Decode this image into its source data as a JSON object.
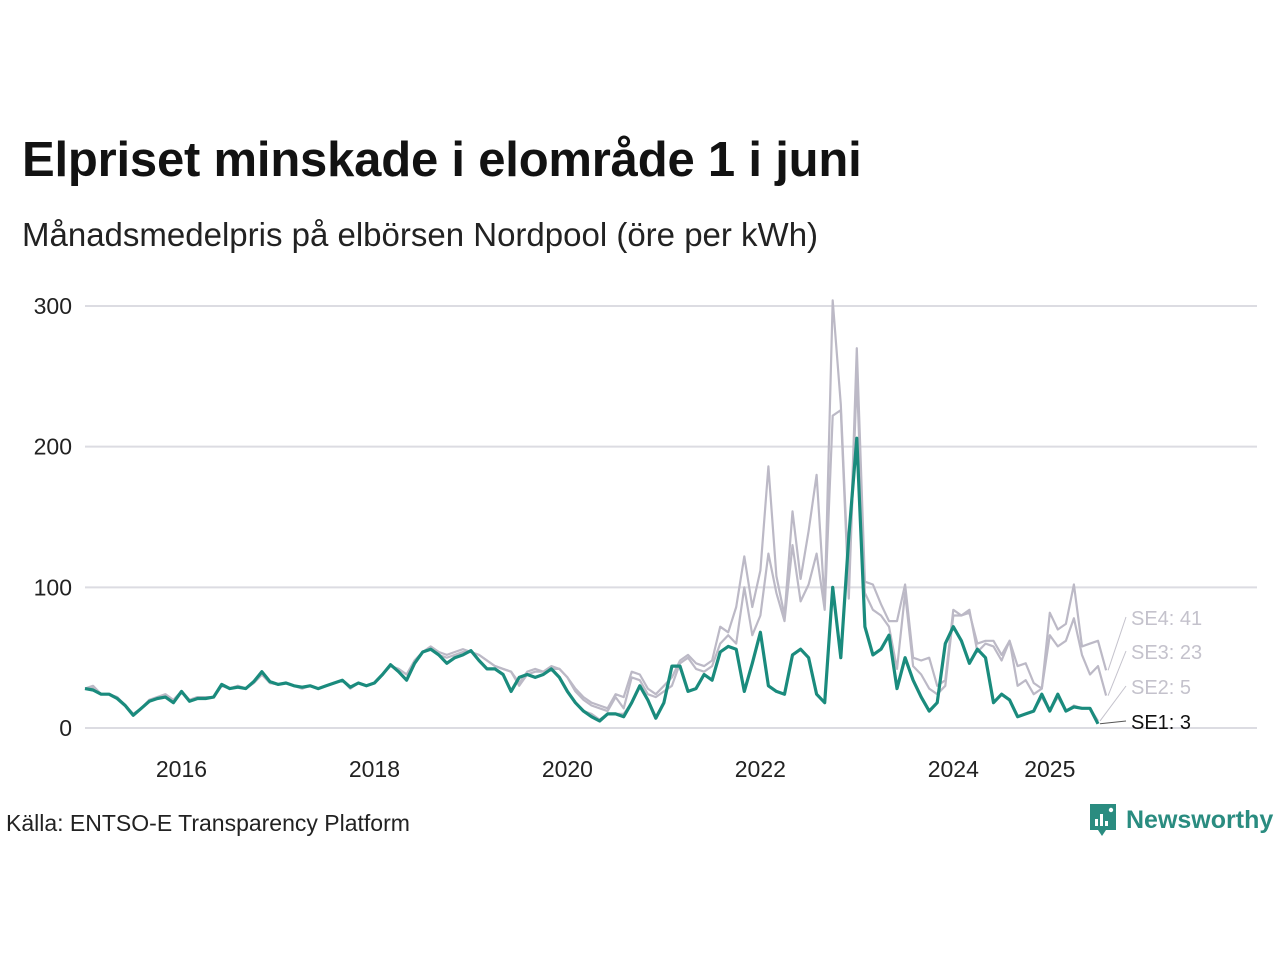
{
  "header": {
    "title": "Elpriset minskade i elområde 1 i juni",
    "subtitle": "Månadsmedelpris på elbörsen Nordpool (öre per kWh)"
  },
  "footer": {
    "source": "Källa: ENTSO-E Transparency Platform",
    "brand": "Newsworthy"
  },
  "colors": {
    "highlight": "#1a8b7d",
    "muted": "#bcb9c6",
    "grid": "#dcdce2",
    "muted_label": "#c4c2cc"
  },
  "chart_data": {
    "type": "line",
    "y_ticks": [
      0,
      100,
      200,
      300
    ],
    "x_ticks": [
      {
        "label": "2016",
        "year": 2016
      },
      {
        "label": "2018",
        "year": 2018
      },
      {
        "label": "2020",
        "year": 2020
      },
      {
        "label": "2022",
        "year": 2022
      },
      {
        "label": "2024",
        "year": 2024
      },
      {
        "label": "2025",
        "year": 2025
      }
    ],
    "x_start": "2015-01",
    "ylim": [
      0,
      310
    ],
    "grid": true,
    "series": [
      {
        "name": "SE4",
        "label": "SE4: 41",
        "highlight": false,
        "values": [
          28,
          30,
          24,
          24,
          22,
          16,
          10,
          14,
          20,
          22,
          24,
          20,
          26,
          20,
          22,
          22,
          22,
          30,
          28,
          30,
          28,
          32,
          38,
          32,
          31,
          32,
          30,
          28,
          30,
          28,
          30,
          32,
          34,
          28,
          32,
          30,
          32,
          38,
          44,
          42,
          38,
          48,
          54,
          58,
          54,
          52,
          54,
          56,
          54,
          52,
          48,
          44,
          42,
          40,
          32,
          40,
          42,
          40,
          44,
          42,
          36,
          28,
          22,
          18,
          16,
          14,
          24,
          22,
          40,
          38,
          28,
          24,
          30,
          36,
          48,
          52,
          46,
          44,
          48,
          72,
          68,
          86,
          122,
          86,
          112,
          186,
          108,
          80,
          154,
          106,
          140,
          180,
          88,
          304,
          230,
          100,
          270,
          104,
          102,
          88,
          76,
          76,
          102,
          50,
          48,
          50,
          30,
          34,
          84,
          80,
          82,
          60,
          62,
          62,
          52,
          62,
          44,
          46,
          32,
          28,
          82,
          70,
          74,
          102,
          58,
          60,
          62,
          41
        ]
      },
      {
        "name": "SE3",
        "label": "SE3: 23",
        "highlight": false,
        "values": [
          28,
          28,
          24,
          24,
          22,
          16,
          10,
          14,
          20,
          22,
          23,
          20,
          26,
          20,
          22,
          22,
          22,
          30,
          28,
          30,
          28,
          32,
          38,
          32,
          31,
          32,
          30,
          28,
          30,
          28,
          30,
          32,
          34,
          28,
          32,
          30,
          32,
          38,
          44,
          42,
          38,
          48,
          54,
          56,
          52,
          50,
          52,
          54,
          54,
          52,
          48,
          44,
          42,
          40,
          30,
          38,
          40,
          40,
          42,
          42,
          36,
          26,
          20,
          16,
          14,
          12,
          22,
          14,
          36,
          34,
          24,
          22,
          26,
          30,
          46,
          50,
          42,
          40,
          44,
          60,
          66,
          60,
          100,
          66,
          80,
          124,
          96,
          76,
          130,
          90,
          102,
          124,
          84,
          222,
          226,
          92,
          250,
          96,
          84,
          80,
          72,
          42,
          96,
          44,
          38,
          28,
          24,
          30,
          80,
          80,
          84,
          54,
          60,
          58,
          48,
          62,
          30,
          34,
          24,
          28,
          66,
          58,
          62,
          78,
          52,
          38,
          44,
          23
        ]
      },
      {
        "name": "SE2",
        "label": "SE2: 5",
        "highlight": false,
        "values": [
          28,
          27,
          24,
          24,
          21,
          16,
          9,
          14,
          19,
          21,
          22,
          18,
          26,
          19,
          21,
          21,
          22,
          31,
          28,
          29,
          28,
          33,
          40,
          33,
          31,
          32,
          30,
          29,
          30,
          28,
          30,
          32,
          34,
          29,
          32,
          30,
          32,
          38,
          45,
          40,
          34,
          46,
          54,
          56,
          52,
          46,
          50,
          52,
          55,
          48,
          42,
          42,
          38,
          26,
          36,
          38,
          36,
          38,
          42,
          36,
          26,
          18,
          12,
          10,
          6,
          10,
          10,
          10,
          18,
          30,
          20,
          8,
          18,
          44,
          44,
          26,
          28,
          38,
          34,
          54,
          58,
          56,
          26,
          46,
          68,
          30,
          26,
          24,
          52,
          56,
          50,
          24,
          18,
          100,
          50,
          136,
          206,
          72,
          52,
          56,
          66,
          28,
          50,
          34,
          22,
          12,
          18,
          60,
          72,
          62,
          46,
          56,
          50,
          18,
          24,
          20,
          8,
          10,
          12,
          22,
          12,
          22,
          12,
          16,
          14,
          14,
          5
        ]
      },
      {
        "name": "SE1",
        "label": "SE1: 3",
        "highlight": true,
        "values": [
          28,
          27,
          24,
          24,
          21,
          16,
          9,
          14,
          19,
          21,
          22,
          18,
          26,
          19,
          21,
          21,
          22,
          31,
          28,
          29,
          28,
          33,
          40,
          33,
          31,
          32,
          30,
          29,
          30,
          28,
          30,
          32,
          34,
          29,
          32,
          30,
          32,
          38,
          45,
          40,
          34,
          46,
          54,
          56,
          52,
          46,
          50,
          52,
          55,
          48,
          42,
          42,
          38,
          26,
          36,
          38,
          36,
          38,
          42,
          36,
          26,
          18,
          12,
          8,
          5,
          10,
          10,
          8,
          18,
          30,
          20,
          7,
          18,
          44,
          44,
          26,
          28,
          38,
          34,
          54,
          58,
          56,
          26,
          46,
          68,
          30,
          26,
          24,
          52,
          56,
          50,
          24,
          18,
          100,
          50,
          136,
          206,
          72,
          52,
          56,
          66,
          28,
          50,
          34,
          22,
          12,
          18,
          60,
          72,
          62,
          46,
          56,
          50,
          18,
          24,
          20,
          8,
          10,
          12,
          24,
          12,
          24,
          12,
          15,
          14,
          14,
          3
        ]
      }
    ]
  }
}
